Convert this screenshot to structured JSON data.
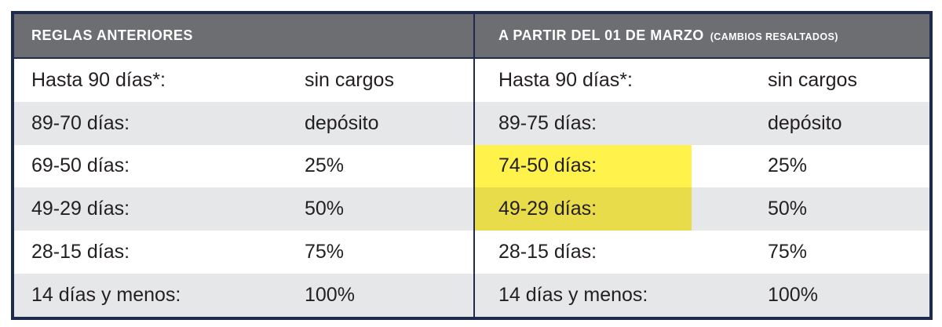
{
  "left_panel": {
    "header": "REGLAS ANTERIORES",
    "rows": [
      {
        "label": "Hasta 90 días*:",
        "value": "sin cargos"
      },
      {
        "label": "89-70 días:",
        "value": "depósito"
      },
      {
        "label": "69-50 días:",
        "value": "25%"
      },
      {
        "label": "49-29 días:",
        "value": "50%"
      },
      {
        "label": "28-15 días:",
        "value": "75%"
      },
      {
        "label": "14 días y menos:",
        "value": "100%"
      }
    ]
  },
  "right_panel": {
    "header": "A PARTIR DEL 01 DE MARZO",
    "header_note": "(CAMBIOS RESALTADOS)",
    "rows": [
      {
        "label": "Hasta 90 días*:",
        "value": "sin cargos",
        "highlighted": false
      },
      {
        "label": "89-75 días:",
        "value": "depósito",
        "highlighted": false
      },
      {
        "label": "74-50 días:",
        "value": "25%",
        "highlighted": true
      },
      {
        "label": "49-29 días:",
        "value": "50%",
        "highlighted": true
      },
      {
        "label": "28-15 días:",
        "value": "75%",
        "highlighted": false
      },
      {
        "label": "14 días y menos:",
        "value": "100%",
        "highlighted": false
      }
    ]
  },
  "colors": {
    "border": "#1f2b4d",
    "header_bg": "#6d6e71",
    "row_alt_bg": "#e6e7e9",
    "highlight": "#fff24a"
  }
}
